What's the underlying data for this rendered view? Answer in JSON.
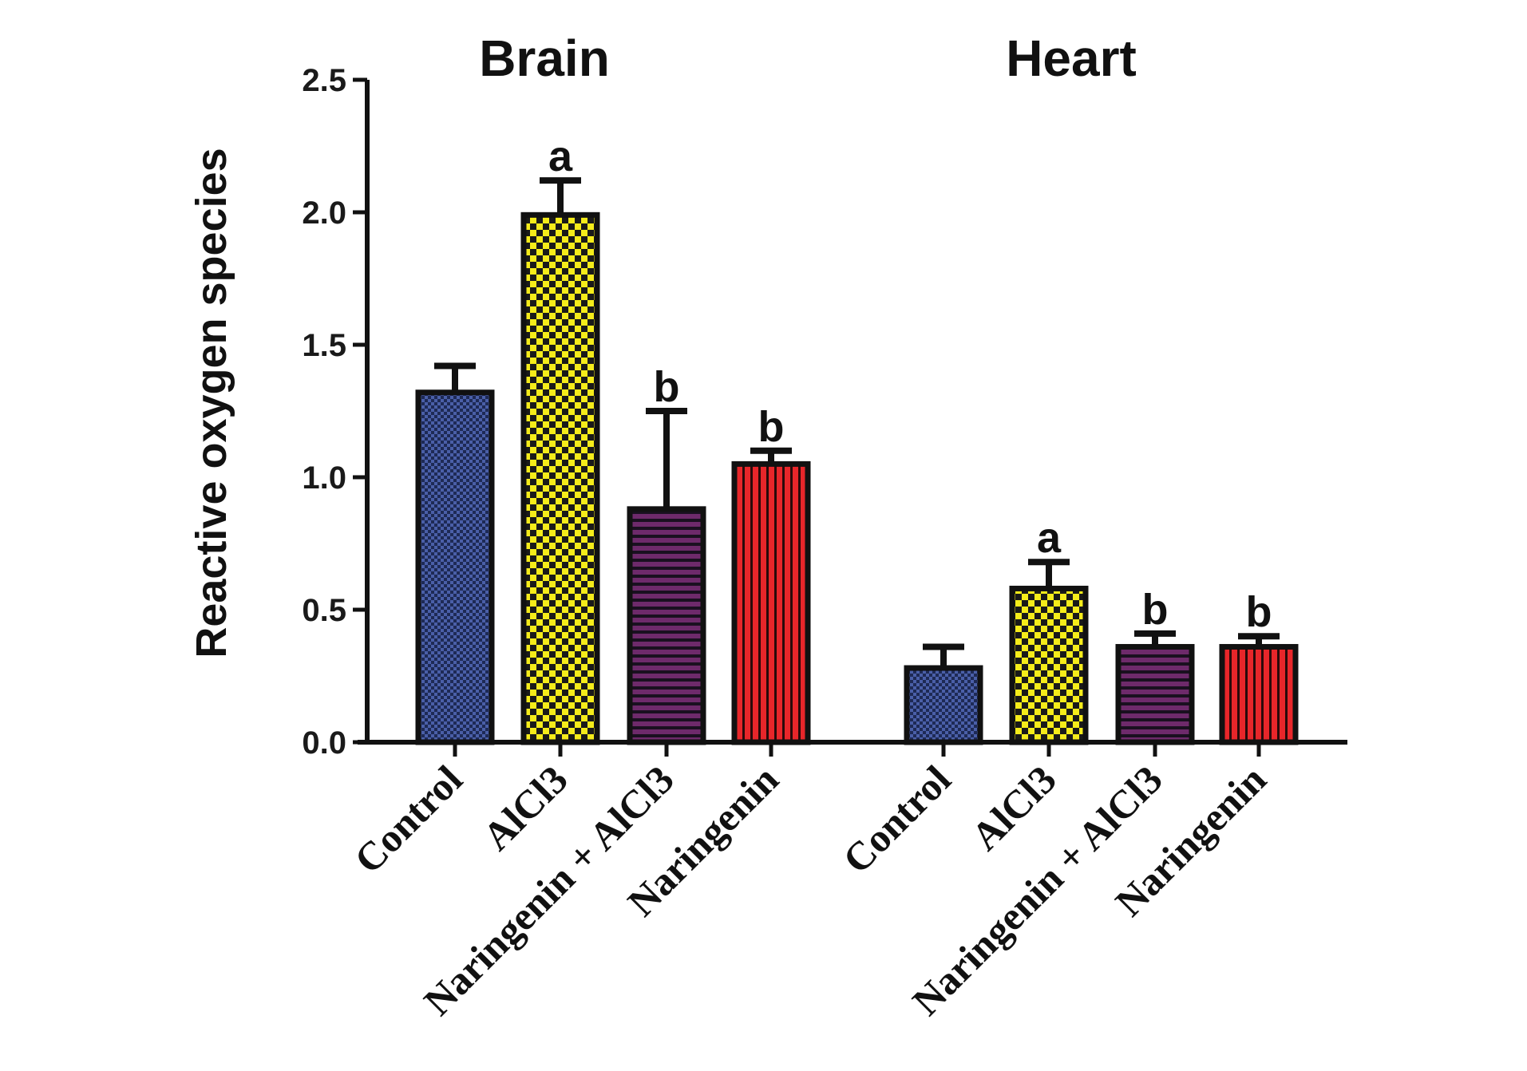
{
  "chart_data": {
    "type": "bar",
    "ylabel": "Reactive oxygen species",
    "ylim": [
      0,
      2.5
    ],
    "yticks": [
      "0.0",
      "0.5",
      "1.0",
      "1.5",
      "2.0",
      "2.5"
    ],
    "ytick_values": [
      0,
      0.5,
      1.0,
      1.5,
      2.0,
      2.5
    ],
    "groups": [
      {
        "title": "Brain",
        "categories": [
          "Control",
          "AlCl3",
          "Naringenin + AlCl3",
          "Naringenin"
        ],
        "values": [
          1.32,
          1.99,
          0.88,
          1.05
        ],
        "errors": [
          0.1,
          0.13,
          0.37,
          0.05
        ],
        "sig": [
          "",
          "a",
          "b",
          "b"
        ]
      },
      {
        "title": "Heart",
        "categories": [
          "Control",
          "AlCl3",
          "Naringenin + AlCl3",
          "Naringenin"
        ],
        "values": [
          0.28,
          0.58,
          0.36,
          0.36
        ],
        "errors": [
          0.08,
          0.1,
          0.05,
          0.04
        ],
        "sig": [
          "",
          "a",
          "b",
          "b"
        ]
      }
    ],
    "series_colors": [
      "#4a5fa8",
      "#f5ec1a",
      "#6e2a6b",
      "#e8262a"
    ],
    "series_patterns": [
      "checker-fine",
      "checker",
      "horizontal-lines",
      "vertical-lines"
    ],
    "grid": false,
    "legend": "none"
  }
}
